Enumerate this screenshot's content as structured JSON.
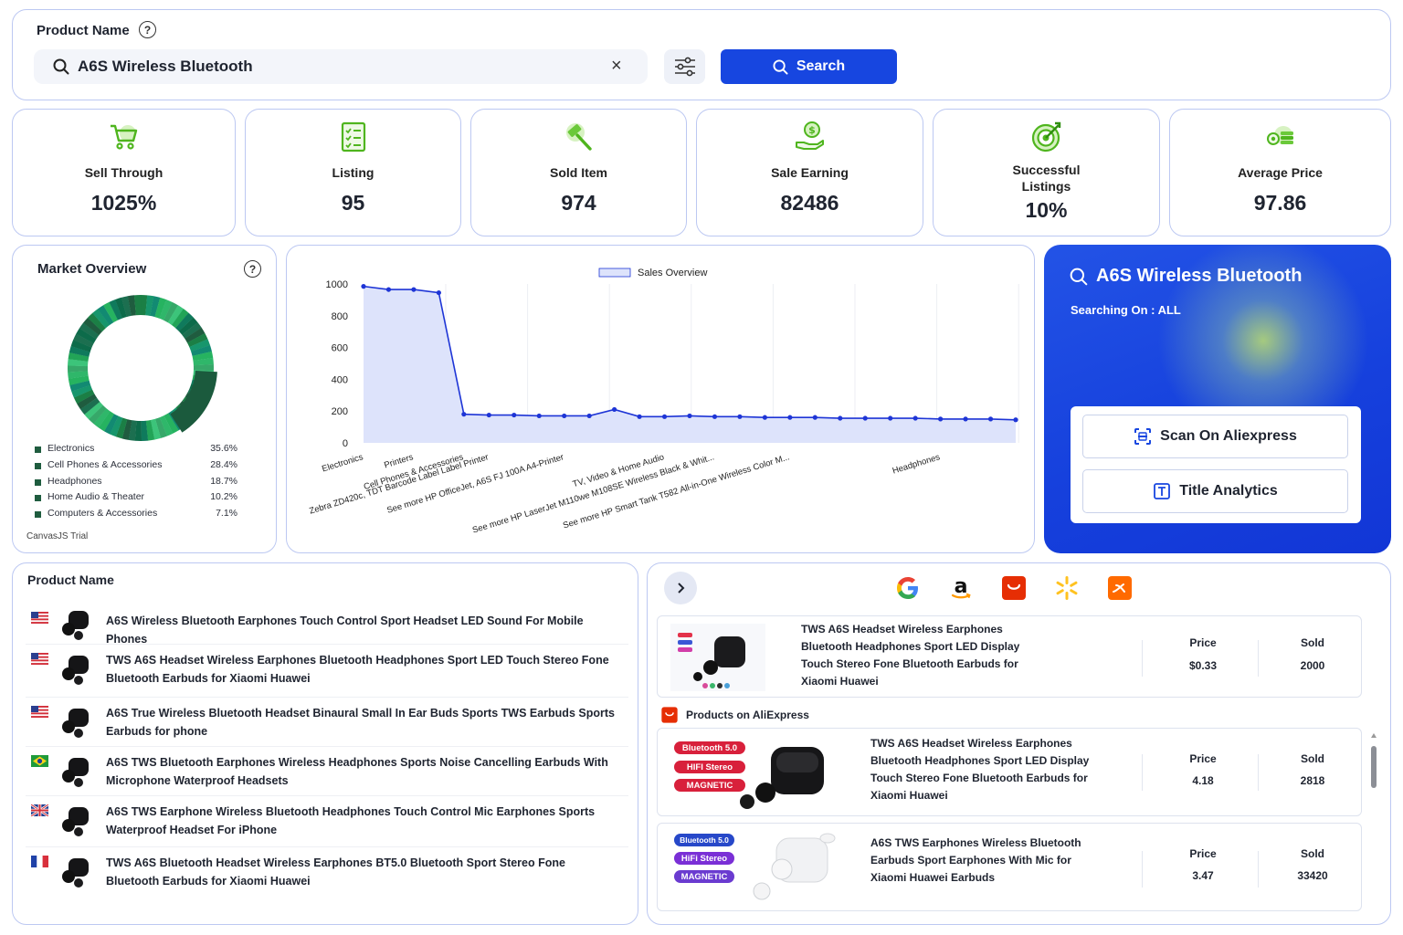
{
  "search": {
    "label": "Product Name",
    "value": "A6S Wireless Bluetooth",
    "button_label": "Search",
    "help_label": "?"
  },
  "stats": [
    {
      "label": "Sell Through",
      "value": "1025%"
    },
    {
      "label": "Listing",
      "value": "95"
    },
    {
      "label": "Sold Item",
      "value": "974"
    },
    {
      "label": "Sale Earning",
      "value": "82486"
    },
    {
      "label": "Successful Listings",
      "value": "10%"
    },
    {
      "label": "Average Price",
      "value": "97.86"
    }
  ],
  "market_overview": {
    "title": "Market Overview",
    "legend": [
      {
        "name": "Electronics",
        "pct": "35.6%",
        "value": 35.6
      },
      {
        "name": "Cell Phones & Accessories",
        "pct": "28.4%",
        "value": 28.4
      },
      {
        "name": "Headphones",
        "pct": "18.7%",
        "value": 18.7
      },
      {
        "name": "Home Audio & Theater",
        "pct": "10.2%",
        "value": 10.2
      },
      {
        "name": "Computers & Accessories",
        "pct": "7.1%",
        "value": 7.1
      }
    ],
    "credit": "CanvasJS Trial"
  },
  "chart_data": {
    "type": "area",
    "legend": "Sales Overview",
    "legend_position": "top-center",
    "ylim": [
      0,
      1000
    ],
    "yticks": [
      "0",
      "200",
      "400",
      "600",
      "800",
      "1000"
    ],
    "x_labels": [
      {
        "i": 0,
        "text": "Electronics"
      },
      {
        "i": 2,
        "text": "Printers"
      },
      {
        "i": 4,
        "text": "Cell Phones & Accessories"
      },
      {
        "i": 5,
        "text": "Zebra ZD420c, TDT Barcode Label Label Printer"
      },
      {
        "i": 8,
        "text": "See more HP OfficeJet, A6S FJ 100A A4-Printer"
      },
      {
        "i": 12,
        "text": "TV, Video & Home Audio"
      },
      {
        "i": 14,
        "text": "See more HP LaserJet M110we M108SE Wireless Black & Whit..."
      },
      {
        "i": 17,
        "text": "See more HP Smart Tank T582 All-in-One Wireless Color M..."
      },
      {
        "i": 23,
        "text": "Headphones"
      }
    ],
    "values": [
      985,
      965,
      965,
      945,
      180,
      175,
      175,
      170,
      170,
      170,
      210,
      165,
      165,
      170,
      165,
      165,
      160,
      160,
      160,
      155,
      155,
      155,
      155,
      150,
      150,
      150,
      145
    ],
    "grid": true
  },
  "promo": {
    "title": "A6S Wireless Bluetooth",
    "subtitle": "Searching On : ALL",
    "scan_label": "Scan On Aliexpress",
    "title_analytics_label": "Title Analytics"
  },
  "products": {
    "title": "Product Name",
    "items": [
      {
        "flag": "us",
        "title": "A6S Wireless Bluetooth Earphones Touch Control Sport Headset LED Sound For Mobile Phones"
      },
      {
        "flag": "us",
        "title": "TWS A6S Headset Wireless Earphones Bluetooth Headphones Sport LED Touch Stereo Fone Bluetooth Earbuds for Xiaomi Huawei"
      },
      {
        "flag": "us",
        "title": "A6S True Wireless Bluetooth Headset Binaural Small In Ear Buds Sports TWS Earbuds Sports Earbuds for phone"
      },
      {
        "flag": "br",
        "title": "A6S TWS Bluetooth Earphones Wireless Headphones Sports Noise Cancelling Earbuds With Microphone Waterproof Headsets"
      },
      {
        "flag": "uk",
        "title": "A6S TWS Earphone Wireless Bluetooth Headphones Touch Control Mic Earphones Sports Waterproof Headset For iPhone"
      },
      {
        "flag": "fr",
        "title": "TWS A6S Bluetooth Headset Wireless Earphones BT5.0 Bluetooth Sport Stereo Fone Bluetooth Earbuds for Xiaomi Huawei"
      }
    ]
  },
  "marketplaces": {
    "logos": [
      "google-logo",
      "amazon-logo",
      "aliexpress-logo",
      "walmart-logo",
      "alibaba-logo"
    ],
    "section_heading": "Products on AliExpress",
    "featured": {
      "title": "TWS A6S Headset Wireless Earphones Bluetooth Headphones Sport LED Display Touch Stereo Fone Bluetooth Earbuds for Xiaomi Huawei",
      "price_label": "Price",
      "price": "$0.33",
      "sold_label": "Sold",
      "sold": "2000"
    },
    "offers": [
      {
        "title": "TWS A6S Headset Wireless Earphones Bluetooth Headphones Sport LED Display Touch Stereo Fone Bluetooth Earbuds for Xiaomi Huawei",
        "price_label": "Price",
        "price": "4.18",
        "sold_label": "Sold",
        "sold": "2818",
        "badges": [
          "Bluetooth 5.0",
          "HIFI Stereo",
          "MAGNETIC"
        ]
      },
      {
        "title": "A6S TWS Earphones Wireless Bluetooth Earbuds Sport Earphones With Mic for Xiaomi Huawei Earbuds",
        "price_label": "Price",
        "price": "3.47",
        "sold_label": "Sold",
        "sold": "33420",
        "badges": [
          "Bluetooth 5.0",
          "HiFi Stereo",
          "MAGNETIC"
        ]
      }
    ]
  },
  "colors": {
    "primary": "#1746e0",
    "card_border": "#bcc8f2",
    "icon_green": "#5cc22a",
    "chart_line": "#1e35d6",
    "chart_fill": "#dde3fb"
  }
}
